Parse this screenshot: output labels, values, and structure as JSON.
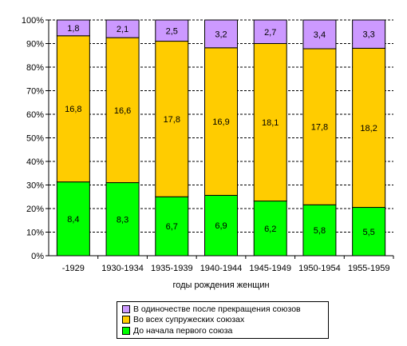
{
  "chart_data": {
    "type": "bar",
    "stacked": true,
    "categories": [
      "-1929",
      "1930-1934",
      "1935-1939",
      "1940-1944",
      "1945-1949",
      "1950-1954",
      "1955-1959"
    ],
    "xlabel": "годы рождения женщин",
    "ylabel": "",
    "ylim": [
      0,
      100
    ],
    "yticks": [
      "0%",
      "10%",
      "20%",
      "30%",
      "40%",
      "50%",
      "60%",
      "70%",
      "80%",
      "90%",
      "100%"
    ],
    "grid": "horizontal dashed",
    "legend_position": "bottom",
    "series": [
      {
        "name": "До начала первого союза",
        "color": "#00ff00",
        "labels": [
          "8,4",
          "8,3",
          "6,7",
          "6,9",
          "6,2",
          "5,8",
          "5,5"
        ],
        "values": [
          31.3,
          31.0,
          25.0,
          25.6,
          23.2,
          21.6,
          20.5
        ]
      },
      {
        "name": "Во всех супружеских союзах",
        "color": "#ffcc00",
        "labels": [
          "16,8",
          "16,6",
          "17,8",
          "16,9",
          "18,1",
          "17,8",
          "18,2"
        ],
        "values": [
          62.0,
          61.5,
          66.0,
          62.6,
          66.8,
          66.2,
          67.5
        ]
      },
      {
        "name": "В одиночестве после прекращения союзов",
        "color": "#cc99ff",
        "labels": [
          "1,8",
          "2,1",
          "2,5",
          "3,2",
          "2,7",
          "3,4",
          "3,3"
        ],
        "values": [
          6.7,
          7.5,
          9.0,
          11.8,
          10.0,
          12.2,
          12.0
        ]
      }
    ]
  }
}
